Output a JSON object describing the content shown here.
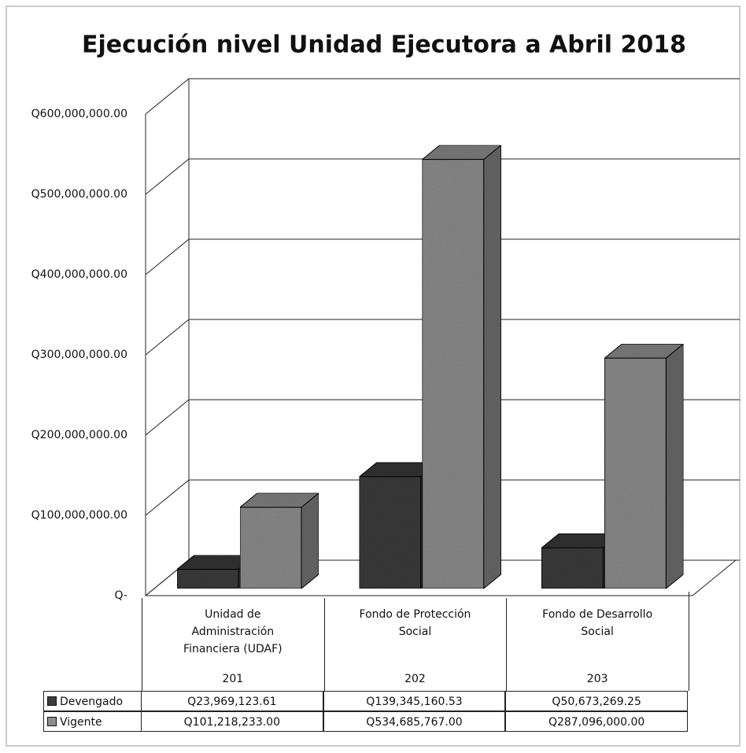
{
  "chart_data": {
    "type": "bar3d",
    "title": "Ejecución nivel Unidad Ejecutora a Abril 2018",
    "categories": [
      "Unidad de Administración Financiera (UDAF)",
      "Fondo de Protección Social",
      "Fondo de Desarrollo Social"
    ],
    "category_codes": [
      "201",
      "202",
      "203"
    ],
    "series": [
      {
        "name": "Devengado",
        "color": "#3c3c3c",
        "values": [
          23969123.61,
          139345160.53,
          50673269.25
        ],
        "value_labels": [
          "Q23,969,123.61",
          "Q139,345,160.53",
          "Q50,673,269.25"
        ]
      },
      {
        "name": "Vigente",
        "color": "#8c8c8c",
        "values": [
          101218233.0,
          534685767.0,
          287096000.0
        ],
        "value_labels": [
          "Q101,218,233.00",
          "Q534,685,767.00",
          "Q287,096,000.00"
        ]
      }
    ],
    "ylim": [
      0,
      600000000
    ],
    "yticks": [
      {
        "value": 0,
        "label": "Q-"
      },
      {
        "value": 100000000,
        "label": "Q100,000,000.00"
      },
      {
        "value": 200000000,
        "label": "Q200,000,000.00"
      },
      {
        "value": 300000000,
        "label": "Q300,000,000.00"
      },
      {
        "value": 400000000,
        "label": "Q400,000,000.00"
      },
      {
        "value": 500000000,
        "label": "Q500,000,000.00"
      },
      {
        "value": 600000000,
        "label": "Q600,000,000.00"
      }
    ],
    "grid": true
  }
}
